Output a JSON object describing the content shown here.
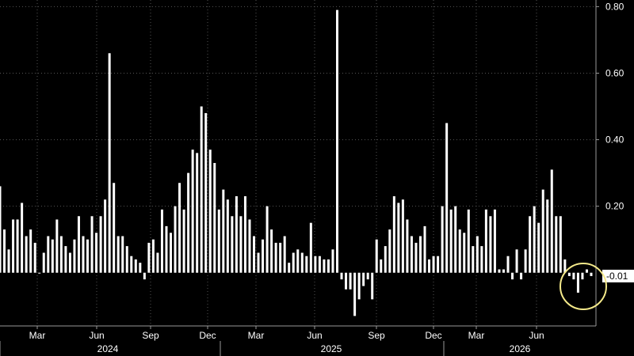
{
  "chart_data": {
    "type": "bar",
    "ylim": [
      -0.16,
      0.82
    ],
    "yticks": [
      0.2,
      0.4,
      0.6,
      0.8
    ],
    "ytick_labels": [
      "0.20",
      "0.40",
      "0.60",
      "0.80"
    ],
    "grid": true,
    "month_ticks": [
      "Mar",
      "Jun",
      "Sep",
      "Dec",
      "Mar",
      "Jun",
      "Sep",
      "Dec",
      "Mar",
      "Jun"
    ],
    "years": [
      "2024",
      "2025",
      "2026"
    ],
    "last_value_label": "-0.01",
    "colors": {
      "background": "#000000",
      "bars": "#ffffff",
      "highlight_circle": "#f4e98a"
    },
    "values": [
      0.26,
      0.13,
      0.07,
      0.16,
      0.16,
      0.21,
      0.11,
      0.13,
      0.09,
      0.0,
      0.06,
      0.11,
      0.1,
      0.16,
      0.11,
      0.08,
      0.06,
      0.1,
      0.17,
      0.11,
      0.1,
      0.17,
      0.12,
      0.17,
      0.22,
      0.66,
      0.27,
      0.11,
      0.11,
      0.08,
      0.05,
      0.04,
      0.03,
      -0.02,
      0.09,
      0.1,
      0.06,
      0.19,
      0.14,
      0.12,
      0.2,
      0.27,
      0.19,
      0.3,
      0.37,
      0.36,
      0.5,
      0.48,
      0.37,
      0.33,
      0.19,
      0.25,
      0.22,
      0.17,
      0.23,
      0.17,
      0.23,
      0.16,
      0.11,
      0.06,
      0.1,
      0.2,
      0.13,
      0.09,
      0.09,
      0.11,
      0.03,
      0.06,
      0.07,
      0.06,
      0.05,
      0.15,
      0.05,
      0.05,
      0.04,
      0.04,
      0.07,
      0.79,
      -0.02,
      -0.05,
      -0.05,
      -0.13,
      -0.08,
      -0.04,
      -0.02,
      -0.08,
      0.1,
      0.04,
      0.08,
      0.13,
      0.23,
      0.21,
      0.22,
      0.16,
      0.11,
      0.09,
      0.11,
      0.14,
      0.04,
      0.05,
      0.05,
      0.2,
      0.45,
      0.19,
      0.2,
      0.13,
      0.12,
      0.19,
      0.08,
      0.11,
      0.08,
      0.19,
      0.17,
      0.19,
      0.01,
      0.01,
      0.05,
      -0.02,
      0.07,
      -0.02,
      0.07,
      0.17,
      0.2,
      0.15,
      0.25,
      0.22,
      0.31,
      0.17,
      0.17,
      0.04,
      -0.01,
      -0.02,
      -0.06,
      -0.02,
      0.01,
      -0.01
    ]
  }
}
